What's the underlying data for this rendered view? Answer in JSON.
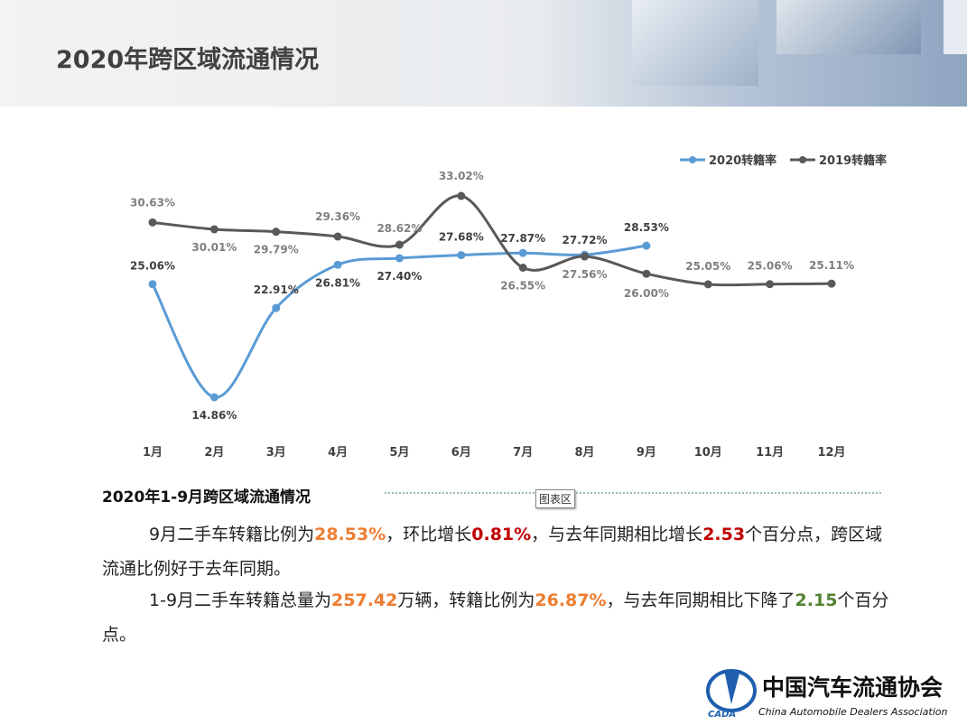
{
  "header": {
    "title": "2020年跨区域流通情况"
  },
  "chart_data": {
    "type": "line",
    "categories": [
      "1月",
      "2月",
      "3月",
      "4月",
      "5月",
      "6月",
      "7月",
      "8月",
      "9月",
      "10月",
      "11月",
      "12月"
    ],
    "legend": "top-right",
    "series": [
      {
        "name": "2020转籍率",
        "color": "#5b9bd5",
        "values": [
          25.06,
          14.86,
          22.91,
          26.81,
          27.4,
          27.68,
          27.87,
          27.72,
          28.53,
          null,
          null,
          null
        ],
        "value_labels": [
          "25.06%",
          "14.86%",
          "22.91%",
          "26.81%",
          "27.40%",
          "27.68%",
          "27.87%",
          "27.72%",
          "28.53%",
          null,
          null,
          null
        ]
      },
      {
        "name": "2019转籍率",
        "color": "#595959",
        "values": [
          30.63,
          30.01,
          29.79,
          29.36,
          28.62,
          33.02,
          26.55,
          27.56,
          26.0,
          25.05,
          25.06,
          25.11
        ],
        "value_labels": [
          "30.63%",
          "30.01%",
          "29.79%",
          "29.36%",
          "28.62%",
          "33.02%",
          "26.55%",
          "27.56%",
          "26.00%",
          "25.05%",
          "25.06%",
          "25.11%"
        ]
      }
    ]
  },
  "section": {
    "title": "2020年1-9月跨区域流通情况",
    "tooltip": "图表区",
    "paragraphs": [
      [
        "9月二手车转籍比例为",
        "28.53%",
        "，环比增长",
        "0.81%",
        "，与去年同期相比增长",
        "2.53",
        "个百分点，跨区域流通比例好于去年同期。"
      ],
      [
        "1-9月二手车转籍总量为",
        "257.42",
        "万辆，转籍比例为",
        "26.87%",
        "，与去年同期相比下降了",
        "2.15",
        "个百分点。"
      ]
    ]
  },
  "logo": {
    "abbr": "CADA",
    "name": "中国汽车流通协会",
    "english": "China Automobile Dealers Association"
  }
}
